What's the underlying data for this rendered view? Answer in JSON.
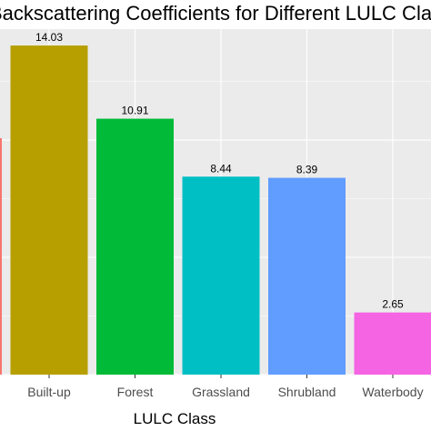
{
  "chart_data": {
    "type": "bar",
    "title": "Backscattering Coefficients for Different LULC Class",
    "xlabel": "LULC Class",
    "ylabel": "",
    "categories": [
      "Built-up",
      "Forest",
      "Grassland",
      "Shrubland",
      "Waterbody"
    ],
    "values": [
      14.03,
      10.91,
      8.44,
      8.39,
      2.65
    ],
    "value_labels": [
      "14.03",
      "10.91",
      "8.44",
      "8.39",
      "2.65"
    ],
    "colors": [
      "#B79F00",
      "#00BA38",
      "#00BFC4",
      "#619CFF",
      "#F564E3"
    ],
    "cropped_bar_color": "#F8766D",
    "ylim": [
      0,
      14.73
    ],
    "grid": true,
    "panel_background": "#EBEBEB",
    "grid_color": "#FFFFFF",
    "legend": "none"
  }
}
